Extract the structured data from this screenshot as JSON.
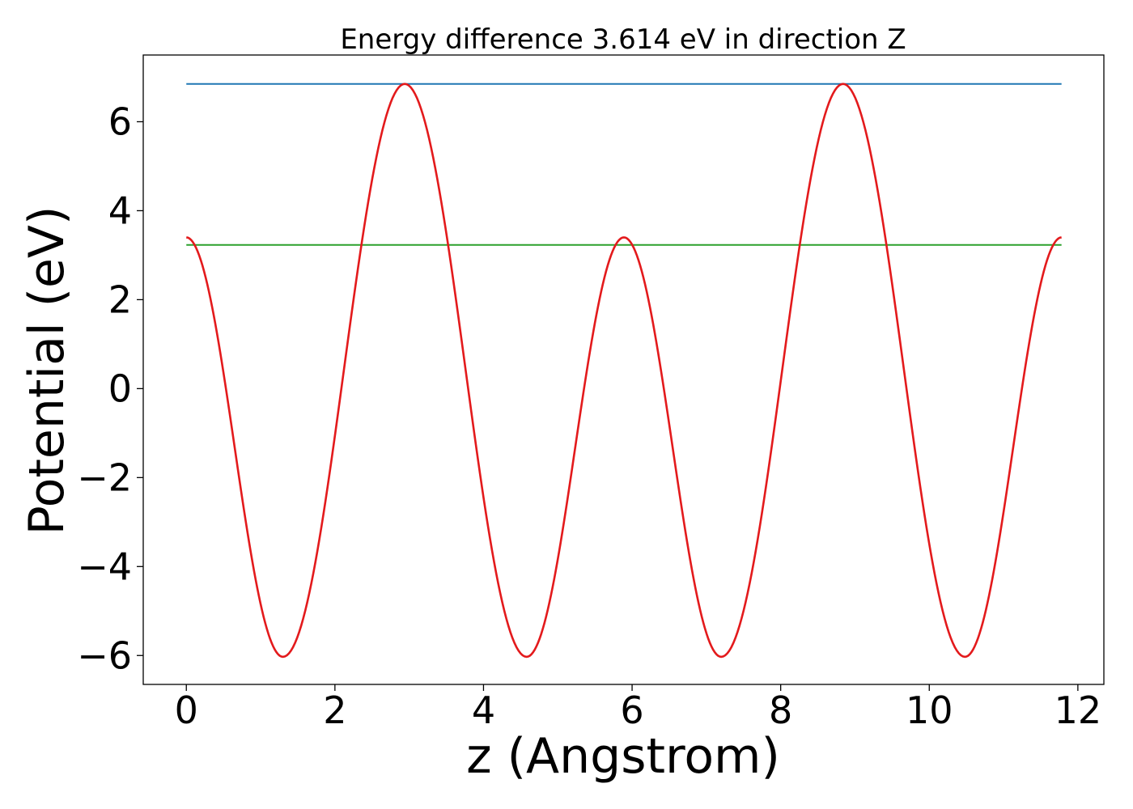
{
  "chart_data": {
    "type": "line",
    "title": "Energy difference 3.614 eV in direction Z",
    "xlabel": "z (Angstrom)",
    "ylabel": "Potential (eV)",
    "xlim": [
      -0.58,
      12.35
    ],
    "ylim": [
      -6.65,
      7.5
    ],
    "x_ticks": [
      0,
      2,
      4,
      6,
      8,
      10,
      12
    ],
    "y_ticks": [
      -6,
      -4,
      -2,
      0,
      2,
      4,
      6
    ],
    "x_tick_labels": [
      "0",
      "2",
      "4",
      "6",
      "8",
      "10",
      "12"
    ],
    "y_tick_labels": [
      "−6",
      "−4",
      "−2",
      "0",
      "2",
      "4",
      "6"
    ],
    "grid": false,
    "legend": "none",
    "series": [
      {
        "color": "#1f77b4",
        "style": "constant",
        "x": [
          0,
          11.78
        ],
        "y": [
          6.85,
          6.85
        ]
      },
      {
        "color": "#2ca02c",
        "style": "constant",
        "x": [
          0,
          11.78
        ],
        "y": [
          3.23,
          3.23
        ]
      },
      {
        "color": "#e31a1c",
        "style": "potential",
        "x": [
          0,
          1.3,
          2.94,
          4.58,
          5.89,
          7.2,
          8.84,
          10.48,
          11.78
        ],
        "y": [
          3.4,
          -6.03,
          6.85,
          -6.03,
          3.4,
          -6.03,
          6.85,
          -6.03,
          3.4
        ]
      }
    ]
  }
}
